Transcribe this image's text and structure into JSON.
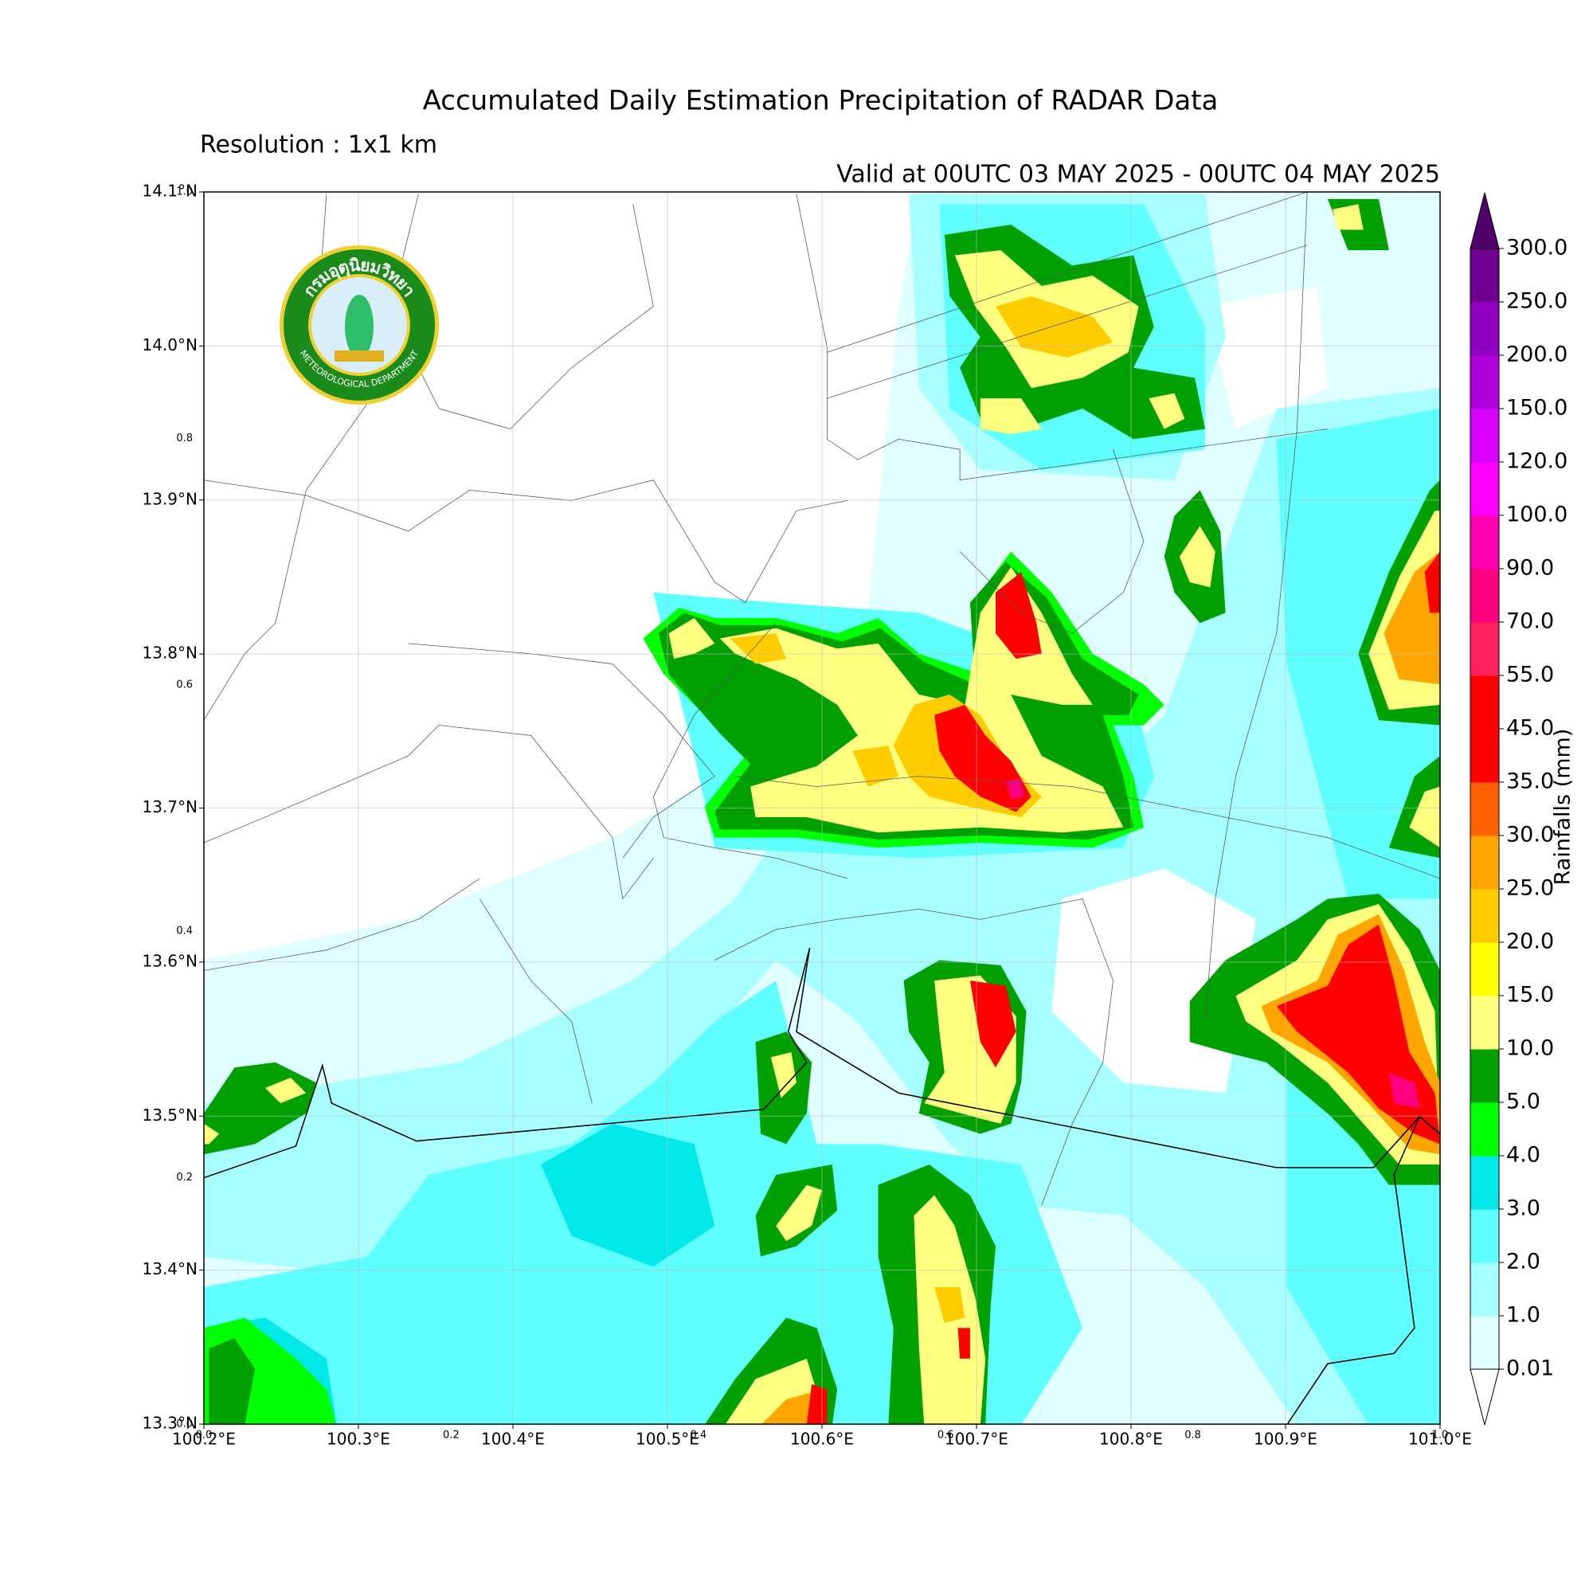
{
  "header": {
    "title": "Accumulated Daily Estimation Precipitation of RADAR Data",
    "resolution": "Resolution : 1x1 km",
    "valid": "Valid at 00UTC 03 MAY 2025 - 00UTC 04 MAY 2025"
  },
  "logo": {
    "name_thai": "กรมอุตุนิยมวิทยา",
    "name_english": "METEOROLOGICAL DEPARTMENT"
  },
  "map": {
    "xlim": [
      100.2,
      101.0
    ],
    "ylim": [
      13.3,
      14.1
    ],
    "grid": true,
    "xticks": [
      {
        "value": 100.2,
        "label": "100.2°E"
      },
      {
        "value": 100.3,
        "label": "100.3°E"
      },
      {
        "value": 100.4,
        "label": "100.4°E"
      },
      {
        "value": 100.5,
        "label": "100.5°E"
      },
      {
        "value": 100.6,
        "label": "100.6°E"
      },
      {
        "value": 100.7,
        "label": "100.7°E"
      },
      {
        "value": 100.8,
        "label": "100.8°E"
      },
      {
        "value": 100.9,
        "label": "100.9°E"
      },
      {
        "value": 101.0,
        "label": "101.0°E"
      }
    ],
    "yticks": [
      {
        "value": 13.3,
        "label": "13.3°N"
      },
      {
        "value": 13.4,
        "label": "13.4°N"
      },
      {
        "value": 13.5,
        "label": "13.5°N"
      },
      {
        "value": 13.6,
        "label": "13.6°N"
      },
      {
        "value": 13.7,
        "label": "13.7°N"
      },
      {
        "value": 13.8,
        "label": "13.8°N"
      },
      {
        "value": 13.9,
        "label": "13.9°N"
      },
      {
        "value": 14.0,
        "label": "14.0°N"
      },
      {
        "value": 14.1,
        "label": "14.1°N"
      }
    ],
    "overlay_ticks": [
      {
        "value": 0,
        "label": "0.0"
      },
      0.2,
      0.4,
      0.6,
      0.8,
      {
        "value": 1,
        "label": "1.0"
      }
    ]
  },
  "colorbar": {
    "title": "Rainfalls (mm)",
    "levels": [
      0.01,
      {
        "value": 1,
        "label": "1.0"
      },
      {
        "value": 2,
        "label": "2.0"
      },
      {
        "value": 3,
        "label": "3.0"
      },
      {
        "value": 4,
        "label": "4.0"
      },
      {
        "value": 5,
        "label": "5.0"
      },
      {
        "value": 10,
        "label": "10.0"
      },
      {
        "value": 15,
        "label": "15.0"
      },
      {
        "value": 20,
        "label": "20.0"
      },
      {
        "value": 25,
        "label": "25.0"
      },
      {
        "value": 30,
        "label": "30.0"
      },
      {
        "value": 35,
        "label": "35.0"
      },
      {
        "value": 45,
        "label": "45.0"
      },
      {
        "value": 55,
        "label": "55.0"
      },
      {
        "value": 70,
        "label": "70.0"
      },
      {
        "value": 90,
        "label": "90.0"
      },
      {
        "value": 100,
        "label": "100.0"
      },
      {
        "value": 120,
        "label": "120.0"
      },
      {
        "value": 150,
        "label": "150.0"
      },
      {
        "value": 200,
        "label": "200.0"
      },
      {
        "value": 250,
        "label": "250.0"
      },
      {
        "value": 300,
        "label": "300.0"
      }
    ],
    "colors": [
      "#e0ffff",
      "#a8ffff",
      "#60ffff",
      "#00e8e8",
      "#00ff00",
      "#00a000",
      "#ffff80",
      "#ffff00",
      "#ffcc00",
      "#ffa500",
      "#ff6000",
      "#ff0000",
      "#ff0000",
      "#ff2060",
      "#ff0080",
      "#ff00b0",
      "#ff00ff",
      "#d800ff",
      "#b000e0",
      "#9000c0",
      "#700090"
    ],
    "under_color": "#ffffff",
    "over_color": "#50006a"
  }
}
